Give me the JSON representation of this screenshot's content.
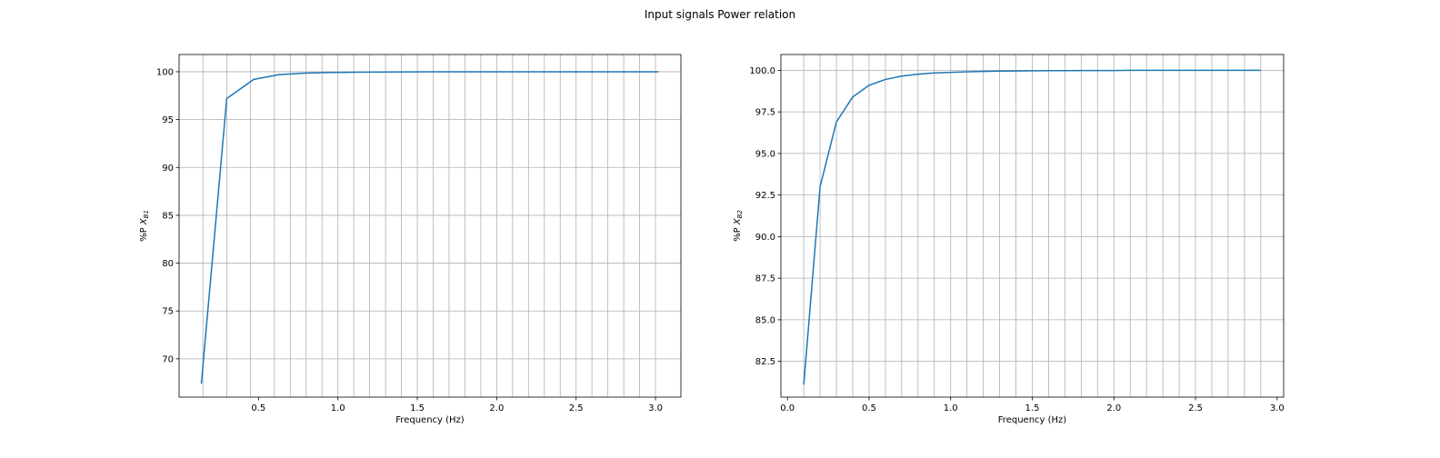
{
  "figure": {
    "suptitle": "Input signals Power relation",
    "line_color": "#1f77b4",
    "grid_color": "#b0b0b0"
  },
  "chart_data": [
    {
      "type": "line",
      "title": "",
      "xlabel": "Frequency (Hz)",
      "ylabel_prefix": "%P ",
      "ylabel_var": "X",
      "ylabel_sub": "B1",
      "xlim": [
        0.0,
        3.16
      ],
      "ylim": [
        66.0,
        101.8
      ],
      "xticks": [
        0.5,
        1.0,
        1.5,
        2.0,
        2.5,
        3.0
      ],
      "xtick_labels": [
        "0.5",
        "1.0",
        "1.5",
        "2.0",
        "2.5",
        "3.0"
      ],
      "yticks": [
        70,
        75,
        80,
        85,
        90,
        95,
        100
      ],
      "ytick_labels": [
        "70",
        "75",
        "80",
        "85",
        "90",
        "95",
        "100"
      ],
      "grid_x": [
        0.15,
        0.3,
        0.45,
        0.6,
        0.7,
        0.8,
        0.9,
        1.0,
        1.1,
        1.2,
        1.3,
        1.4,
        1.5,
        1.6,
        1.7,
        1.8,
        1.9,
        2.0,
        2.1,
        2.2,
        2.3,
        2.4,
        2.5,
        2.6,
        2.7,
        2.8,
        2.9,
        3.0
      ],
      "grid_y": [
        70,
        75,
        80,
        85,
        90,
        95,
        100
      ],
      "grid": true,
      "series": [
        {
          "x": [
            0.14,
            0.3,
            0.47,
            0.63,
            0.79,
            0.95,
            1.1,
            1.26,
            1.42,
            1.58,
            1.74,
            1.9,
            2.05,
            2.21,
            2.37,
            2.53,
            2.69,
            2.84,
            3.02
          ],
          "y": [
            67.4,
            97.2,
            99.2,
            99.7,
            99.85,
            99.92,
            99.95,
            99.97,
            99.98,
            99.99,
            99.99,
            100.0,
            100.0,
            100.0,
            100.0,
            100.0,
            100.0,
            100.0,
            100.0
          ]
        }
      ]
    },
    {
      "type": "line",
      "title": "",
      "xlabel": "Frequency (Hz)",
      "ylabel_prefix": "%P ",
      "ylabel_var": "X",
      "ylabel_sub": "B2",
      "xlim": [
        -0.04,
        3.04
      ],
      "ylim": [
        80.35,
        100.95
      ],
      "xticks": [
        0.0,
        0.5,
        1.0,
        1.5,
        2.0,
        2.5,
        3.0
      ],
      "xtick_labels": [
        "0.0",
        "0.5",
        "1.0",
        "1.5",
        "2.0",
        "2.5",
        "3.0"
      ],
      "yticks": [
        82.5,
        85.0,
        87.5,
        90.0,
        92.5,
        95.0,
        97.5,
        100.0
      ],
      "ytick_labels": [
        "82.5",
        "85.0",
        "87.5",
        "90.0",
        "92.5",
        "95.0",
        "97.5",
        "100.0"
      ],
      "grid_x": [
        0.1,
        0.2,
        0.3,
        0.4,
        0.5,
        0.6,
        0.7,
        0.8,
        0.9,
        1.0,
        1.1,
        1.2,
        1.3,
        1.4,
        1.5,
        1.6,
        1.7,
        1.8,
        1.9,
        2.0,
        2.1,
        2.2,
        2.3,
        2.4,
        2.5,
        2.6,
        2.7,
        2.8,
        2.9
      ],
      "grid_y": [
        82.5,
        85.0,
        87.5,
        90.0,
        92.5,
        95.0,
        97.5,
        100.0
      ],
      "grid": true,
      "series": [
        {
          "x": [
            0.1,
            0.2,
            0.3,
            0.4,
            0.5,
            0.6,
            0.7,
            0.8,
            0.9,
            1.0,
            1.1,
            1.2,
            1.3,
            1.4,
            1.5,
            1.6,
            1.7,
            1.8,
            1.9,
            2.0,
            2.1,
            2.2,
            2.3,
            2.4,
            2.5,
            2.6,
            2.7,
            2.8,
            2.9
          ],
          "y": [
            81.1,
            93.0,
            96.9,
            98.4,
            99.1,
            99.45,
            99.65,
            99.77,
            99.84,
            99.88,
            99.91,
            99.93,
            99.95,
            99.96,
            99.97,
            99.98,
            99.98,
            99.99,
            99.99,
            99.99,
            100.0,
            100.0,
            100.0,
            100.0,
            100.0,
            100.0,
            100.0,
            100.0,
            100.0
          ]
        }
      ]
    }
  ]
}
